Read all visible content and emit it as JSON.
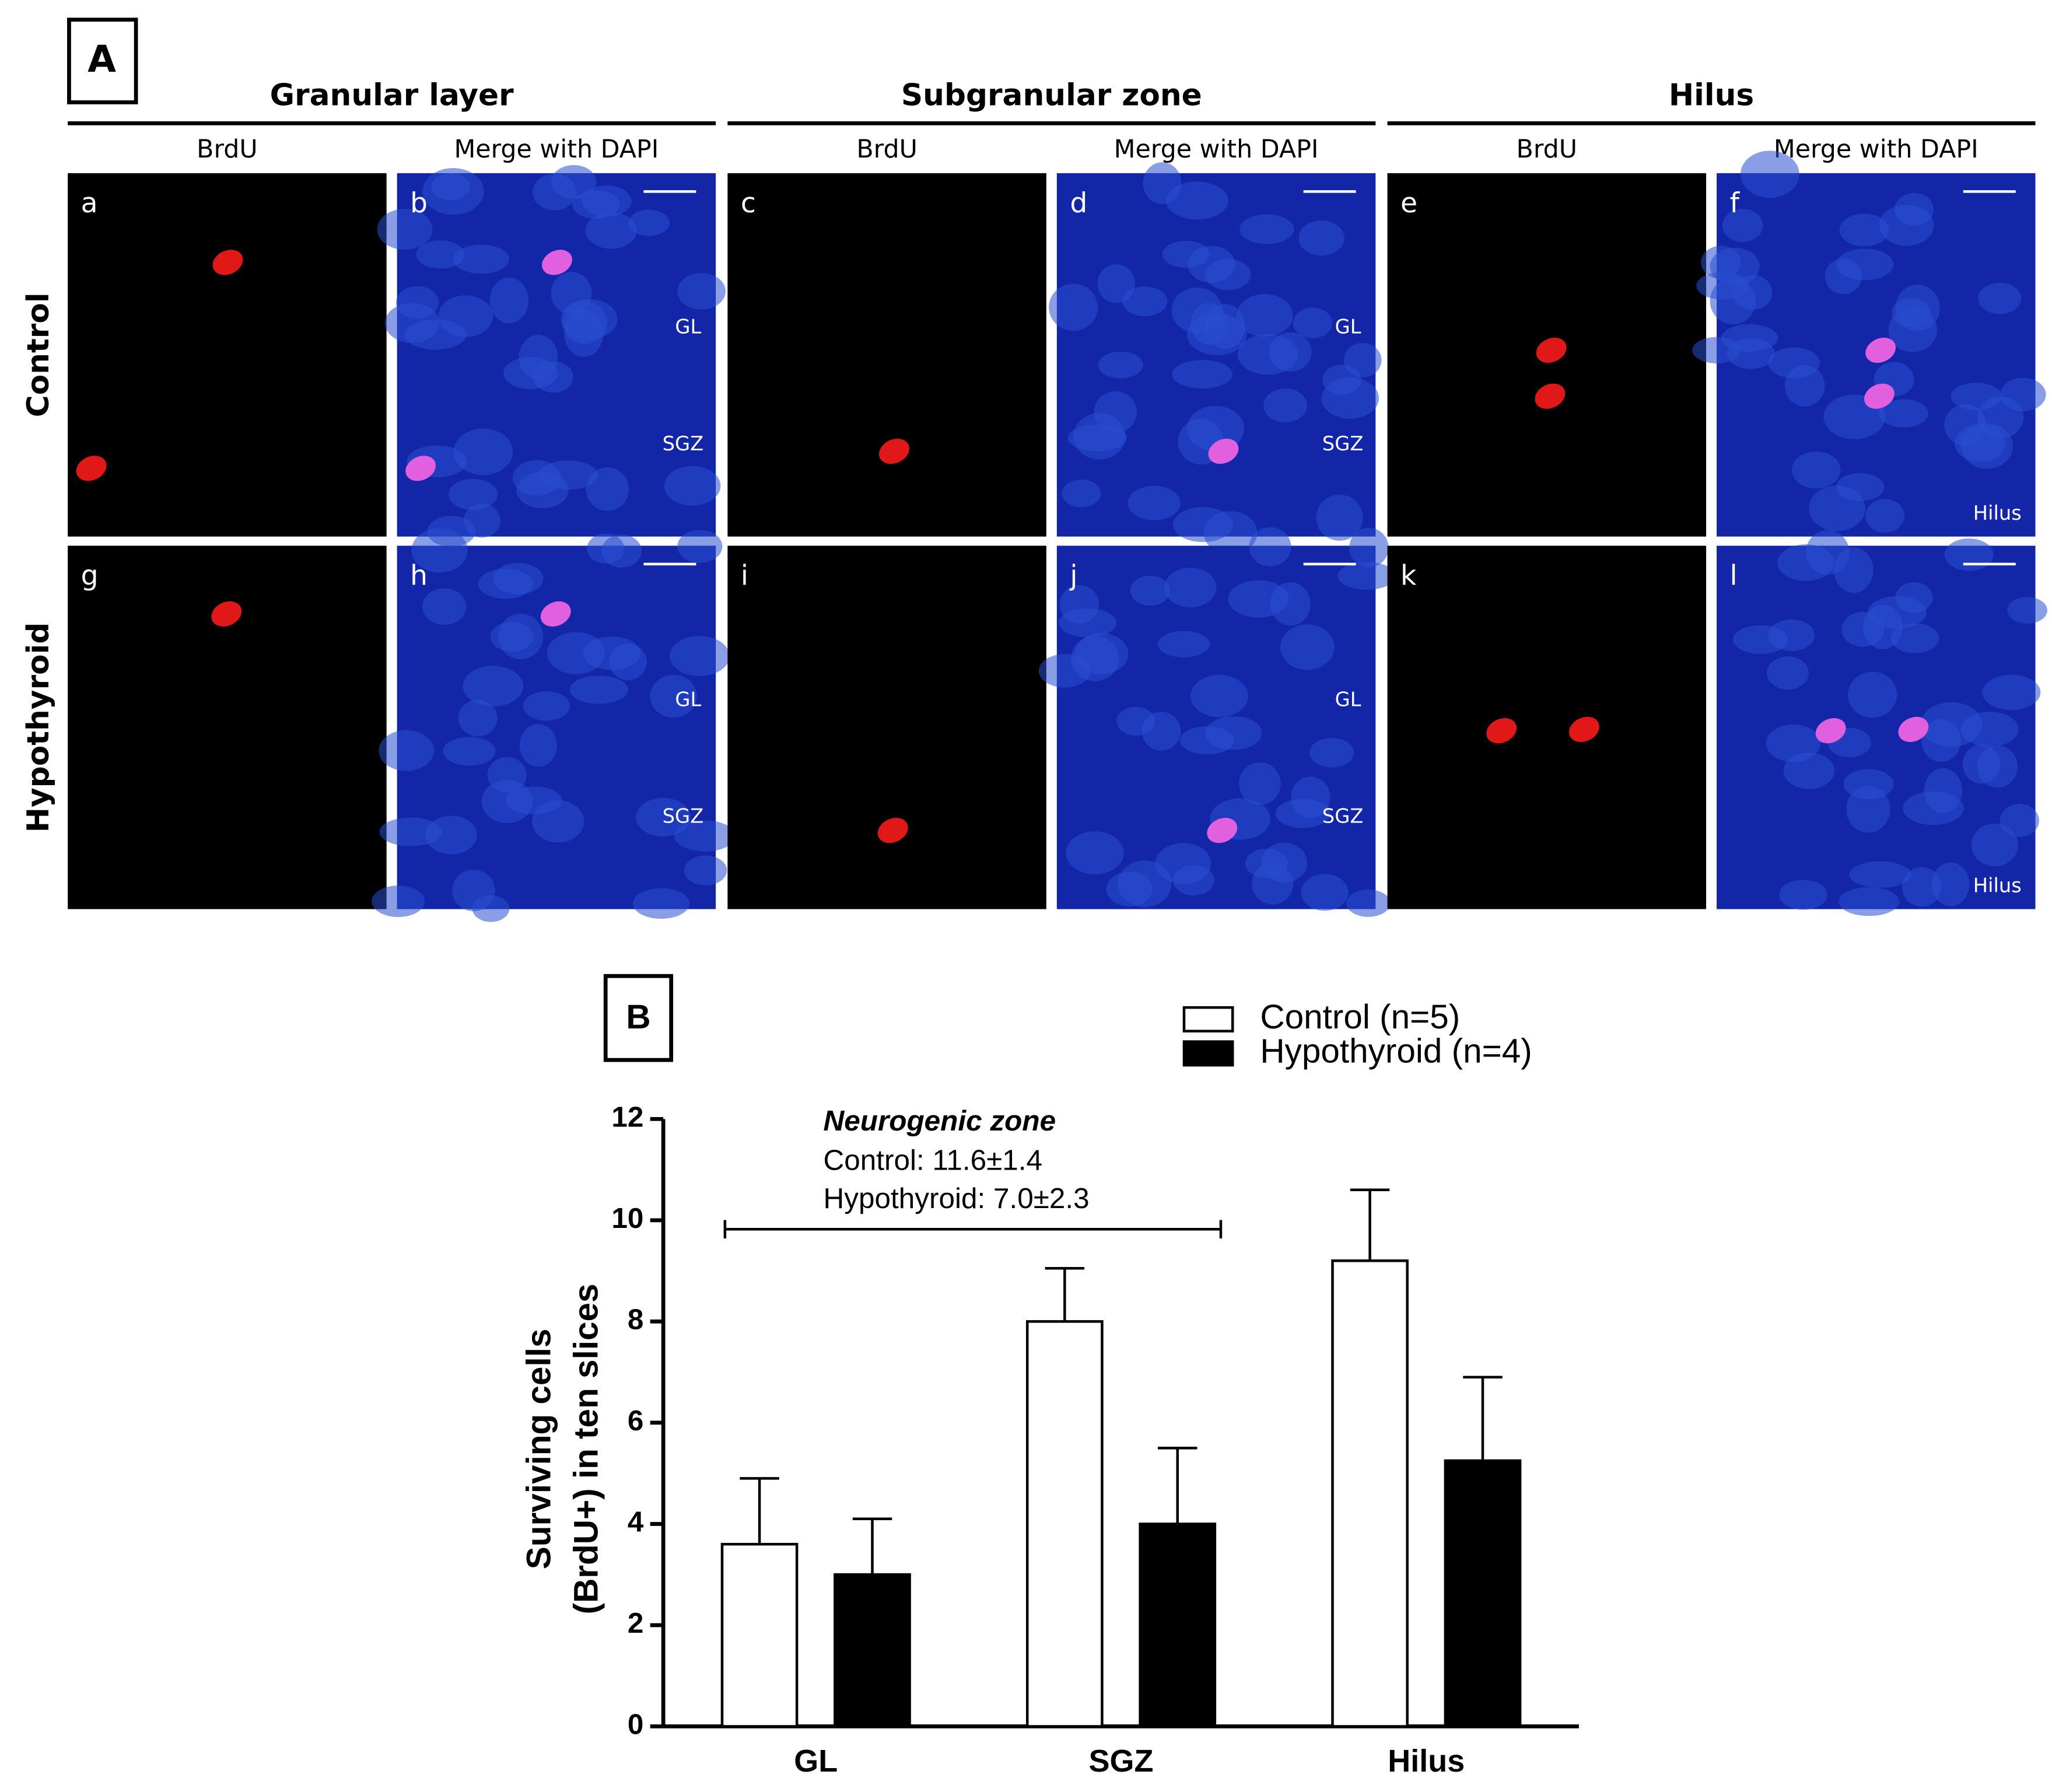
{
  "figure": {
    "panel_a": {
      "label": "A",
      "groups": [
        {
          "title": "Granular layer",
          "columns": [
            "BrdU",
            "Merge with DAPI"
          ]
        },
        {
          "title": "Subgranular zone",
          "columns": [
            "BrdU",
            "Merge with DAPI"
          ]
        },
        {
          "title": "Hilus",
          "columns": [
            "BrdU",
            "Merge with DAPI"
          ]
        }
      ],
      "rows": [
        "Control",
        "Hypothyroid"
      ],
      "panels": [
        {
          "letter": "a",
          "labels": []
        },
        {
          "letter": "b",
          "labels": [
            "GL",
            "SGZ"
          ]
        },
        {
          "letter": "c",
          "labels": []
        },
        {
          "letter": "d",
          "labels": [
            "GL",
            "SGZ"
          ]
        },
        {
          "letter": "e",
          "labels": []
        },
        {
          "letter": "f",
          "labels": [
            "Hilus"
          ]
        },
        {
          "letter": "g",
          "labels": []
        },
        {
          "letter": "h",
          "labels": [
            "GL",
            "SGZ"
          ]
        },
        {
          "letter": "i",
          "labels": []
        },
        {
          "letter": "j",
          "labels": [
            "GL",
            "SGZ"
          ]
        },
        {
          "letter": "k",
          "labels": []
        },
        {
          "letter": "l",
          "labels": [
            "Hilus"
          ]
        }
      ]
    }
  },
  "chart_data": {
    "type": "bar",
    "panel_label": "B",
    "ylabel": [
      "Surviving cells",
      "(BrdU+) in ten slices"
    ],
    "categories": [
      "GL",
      "SGZ",
      "Hilus"
    ],
    "series": [
      {
        "name": "Control (n=5)",
        "color": "#ffffff",
        "values": [
          3.6,
          8.0,
          9.2
        ],
        "errors": [
          1.3,
          1.05,
          1.4
        ]
      },
      {
        "name": "Hypothyroid (n=4)",
        "color": "#000000",
        "values": [
          3.0,
          4.0,
          5.25
        ],
        "errors": [
          1.1,
          1.5,
          1.65
        ]
      }
    ],
    "ylim": [
      0,
      12
    ],
    "yticks": [
      0,
      2,
      4,
      6,
      8,
      10,
      12
    ],
    "legend": "upper right",
    "annotation": {
      "title": "Neurogenic zone",
      "lines": [
        "Control: 11.6±1.4",
        "Hypothyroid: 7.0±2.3"
      ]
    }
  }
}
